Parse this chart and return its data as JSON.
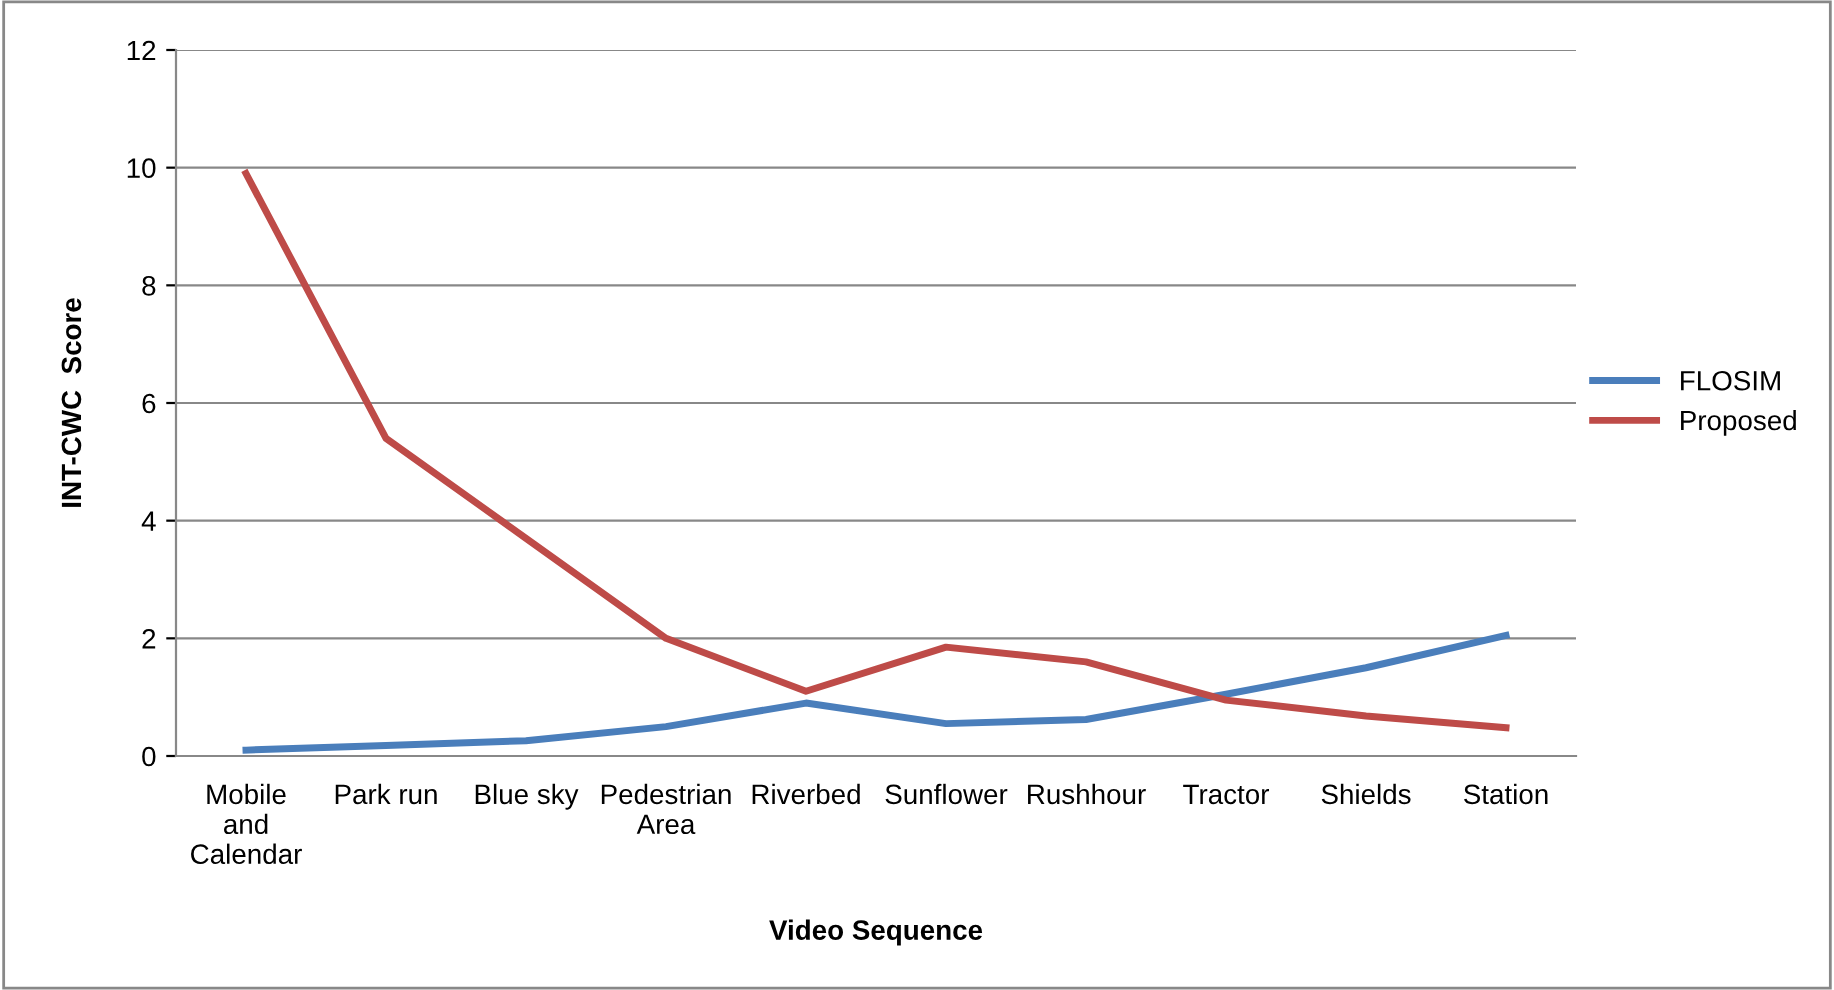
{
  "chart_data": {
    "type": "line",
    "xlabel": "Video Sequence",
    "ylabel": "INT-CWC  Score",
    "categories": [
      "Mobile\nand\nCalendar",
      "Park run",
      "Blue sky",
      "Pedestrian\nArea",
      "Riverbed",
      "Sunflower",
      "Rushhour",
      "Tractor",
      "Shields",
      "Station"
    ],
    "series": [
      {
        "name": "FLOSIM",
        "color": "#4a7ebb",
        "values": [
          0.1,
          0.18,
          0.26,
          0.5,
          0.9,
          0.55,
          0.62,
          1.05,
          1.5,
          2.05
        ]
      },
      {
        "name": "Proposed",
        "color": "#be4b48",
        "values": [
          9.9,
          5.4,
          3.7,
          2.0,
          1.1,
          1.85,
          1.6,
          0.95,
          0.68,
          0.48
        ]
      }
    ],
    "ylim": [
      0,
      12
    ],
    "yticks": [
      0,
      2,
      4,
      6,
      8,
      10,
      12
    ],
    "grid": "y",
    "legend": "right",
    "marker": "none",
    "line_style": "solid"
  }
}
